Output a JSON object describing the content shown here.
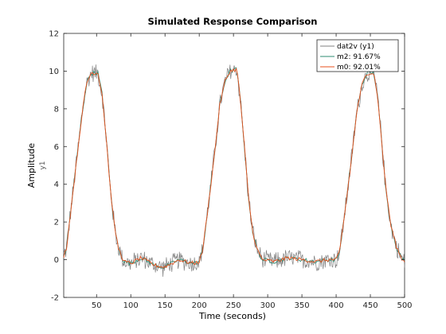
{
  "chart_data": {
    "type": "line",
    "title": "Simulated Response Comparison",
    "xlabel": "Time (seconds)",
    "ylabel": "Amplitude",
    "ylabel_channel": "y1",
    "xlim": [
      2,
      500
    ],
    "ylim": [
      -2,
      12
    ],
    "xticks": [
      50,
      100,
      150,
      200,
      250,
      300,
      350,
      400,
      450,
      500
    ],
    "yticks": [
      -2,
      0,
      2,
      4,
      6,
      8,
      10,
      12
    ],
    "grid": false,
    "legend_position": "top-right",
    "legend": [
      "dat2v (y1)",
      "m2: 91.67%",
      "m0: 92.01%"
    ],
    "series": [
      {
        "name": "dat2v (y1)",
        "color": "#808080",
        "noise_amplitude": 0.35
      },
      {
        "name": "m2: 91.67%",
        "color": "#2e8b72"
      },
      {
        "name": "m0: 92.01%",
        "color": "#e8501c"
      }
    ],
    "response_shape": {
      "points": [
        [
          2,
          0.2
        ],
        [
          6,
          0.6
        ],
        [
          12,
          2.5
        ],
        [
          20,
          5.0
        ],
        [
          28,
          7.5
        ],
        [
          35,
          9.3
        ],
        [
          42,
          9.9
        ],
        [
          52,
          9.9
        ],
        [
          58,
          8.8
        ],
        [
          64,
          6.5
        ],
        [
          70,
          3.8
        ],
        [
          76,
          1.8
        ],
        [
          82,
          0.6
        ],
        [
          90,
          -0.1
        ],
        [
          100,
          -0.2
        ],
        [
          115,
          0.1
        ],
        [
          125,
          -0.1
        ],
        [
          135,
          -0.3
        ],
        [
          148,
          -0.4
        ],
        [
          160,
          -0.2
        ],
        [
          170,
          0.0
        ],
        [
          180,
          -0.1
        ],
        [
          192,
          -0.2
        ],
        [
          200,
          -0.1
        ],
        [
          205,
          0.5
        ],
        [
          212,
          2.5
        ],
        [
          222,
          5.5
        ],
        [
          230,
          8.2
        ],
        [
          238,
          9.5
        ],
        [
          245,
          10.0
        ],
        [
          255,
          10.1
        ],
        [
          260,
          8.5
        ],
        [
          266,
          6.0
        ],
        [
          272,
          3.3
        ],
        [
          278,
          1.5
        ],
        [
          284,
          0.6
        ],
        [
          292,
          0.0
        ],
        [
          310,
          -0.1
        ],
        [
          330,
          0.1
        ],
        [
          350,
          0.0
        ],
        [
          370,
          -0.1
        ],
        [
          390,
          0.0
        ],
        [
          400,
          0.0
        ],
        [
          405,
          0.4
        ],
        [
          412,
          2.3
        ],
        [
          422,
          5.2
        ],
        [
          430,
          7.8
        ],
        [
          438,
          9.3
        ],
        [
          445,
          9.9
        ],
        [
          455,
          9.9
        ],
        [
          460,
          8.8
        ],
        [
          466,
          6.5
        ],
        [
          472,
          4.0
        ],
        [
          480,
          1.8
        ],
        [
          488,
          0.7
        ],
        [
          495,
          0.1
        ],
        [
          500,
          -0.1
        ]
      ]
    }
  }
}
